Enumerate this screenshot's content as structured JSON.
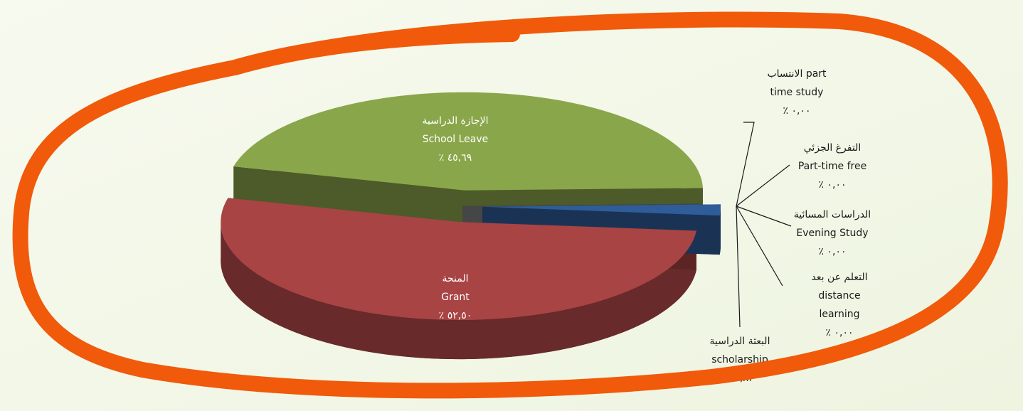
{
  "chart_data": {
    "type": "pie",
    "categories": [
      [
        "المنحة",
        "Grant"
      ],
      [
        "الإجازة الدراسية",
        "School Leave"
      ],
      [
        "الانتساب part",
        "time study"
      ],
      [
        "التفرغ الجزئي",
        "Part-time free"
      ],
      [
        "الدراسات المسائية",
        "Evening Study"
      ],
      [
        "التعلم عن بعد",
        "distance",
        "learning"
      ],
      [
        "البعثة الدراسية",
        "scholarship"
      ]
    ],
    "values": [
      52.5,
      45.69,
      0.0,
      0.0,
      0.0,
      0.0,
      1.82
    ],
    "value_labels": [
      "٪ ٥٢,٥٠",
      "٪ ٤٥,٦٩",
      "٪ ٠,٠٠",
      "٪ ٠,٠٠",
      "٪ ٠,٠٠",
      "٪ ٠,٠٠",
      "٪ ١,٨٢"
    ],
    "colors": [
      "#a84444",
      "#8aa64a",
      "#7f7f7f",
      "#7f7f7f",
      "#7f7f7f",
      "#7f7f7f",
      "#2f5d9a"
    ]
  }
}
